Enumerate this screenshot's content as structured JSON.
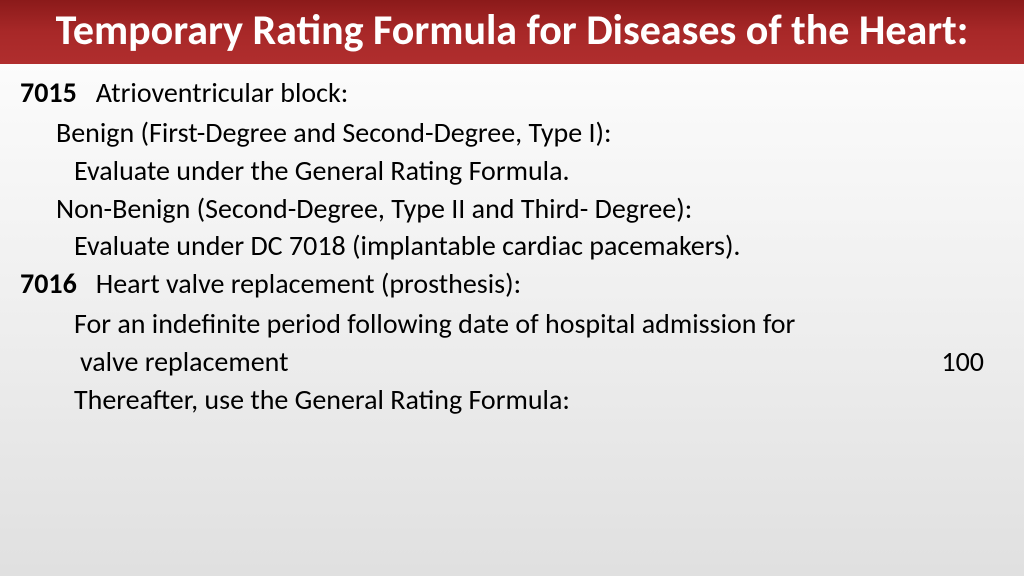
{
  "header": {
    "title": "Temporary Rating Formula for Diseases of the Heart:"
  },
  "entries": {
    "e7015": {
      "code": "7015",
      "label": "Atrioventricular block:",
      "benign_label": "Benign (First-Degree and Second-Degree, Type I):",
      "benign_eval": "Evaluate under the General Rating Formula.",
      "nonbenign_label": "Non-Benign (Second-Degree, Type II and Third- Degree):",
      "nonbenign_eval": "Evaluate under DC 7018 (implantable cardiac pacemakers)."
    },
    "e7016": {
      "code": "7016",
      "label": "Heart valve replacement (prosthesis):",
      "line1a": "For an indefinite period following date of hospital admission for",
      "line1b": "valve replacement",
      "value1": "100",
      "line2": "Thereafter, use the General Rating Formula:"
    }
  },
  "colors": {
    "header_bg_top": "#8b1a1a",
    "header_bg_bottom": "#b02e2e",
    "header_text": "#ffffff",
    "body_text": "#000000",
    "body_bg_top": "#ffffff",
    "body_bg_bottom": "#e0e0e0"
  },
  "typography": {
    "header_fontsize": 42,
    "header_weight": "bold",
    "body_fontsize": 28,
    "code_weight": "bold"
  }
}
